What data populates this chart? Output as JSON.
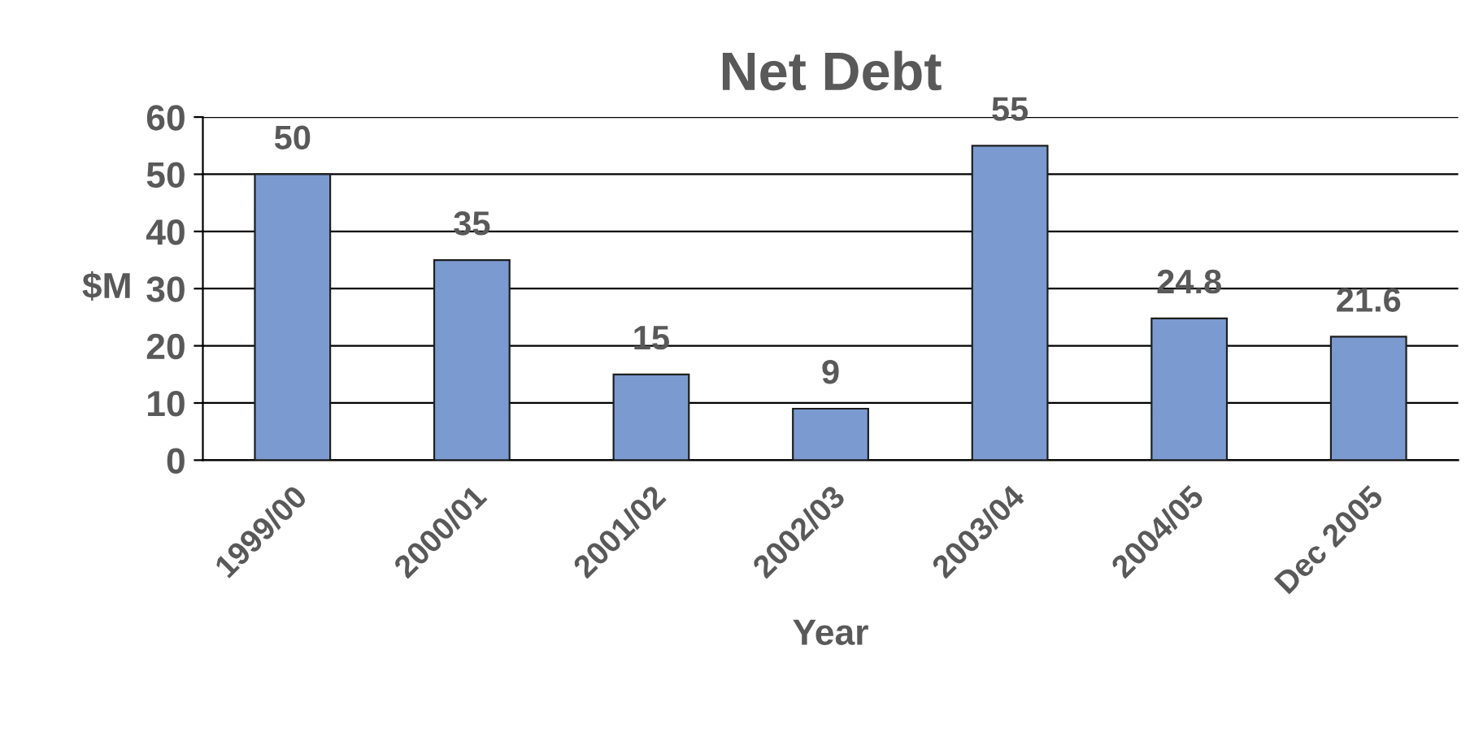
{
  "chart_data": {
    "type": "bar",
    "title": "Net Debt",
    "xlabel": "Year",
    "ylabel": "$M",
    "categories": [
      "1999/00",
      "2000/01",
      "2001/02",
      "2002/03",
      "2003/04",
      "2004/05",
      "Dec 2005"
    ],
    "values": [
      50,
      35,
      15,
      9,
      55,
      24.8,
      21.6
    ],
    "color": "#7b9bd0",
    "ylim": [
      0,
      60
    ],
    "yticks": [
      0,
      10,
      20,
      30,
      40,
      50,
      60
    ],
    "grid": "y",
    "data_labels": true,
    "legend": false
  }
}
